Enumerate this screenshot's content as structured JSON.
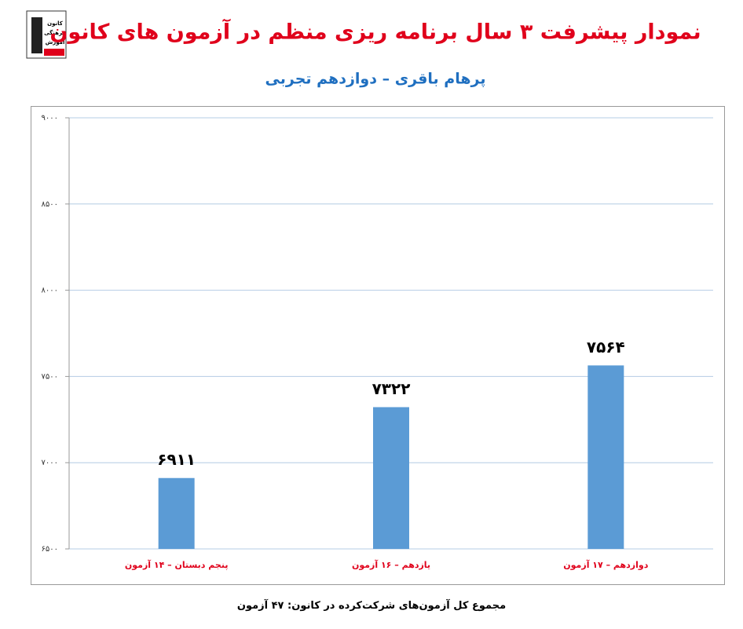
{
  "logo": [
    "کانون",
    "فرهنگی",
    "آموزش"
  ],
  "chart_data": {
    "type": "bar",
    "title": "نمودار پیشرفت ۳ سال برنامه ریزی منظم در آزمون های کانون",
    "subtitle": "پرهام باقری – دوازدهم تجربی",
    "categories": [
      "پنجم دبستان – ۱۴ آزمون",
      "یازدهم – ۱۶ آزمون",
      "دوازدهم – ۱۷ آزمون"
    ],
    "values": [
      6911,
      7322,
      7564
    ],
    "value_labels": [
      "۶۹۱۱",
      "۷۳۲۲",
      "۷۵۶۴"
    ],
    "color": "#5b9bd5",
    "ylim": [
      6500,
      9000
    ],
    "yticks": [
      {
        "value": 6500,
        "label": "۶۵۰۰"
      },
      {
        "value": 7000,
        "label": "۷۰۰۰"
      },
      {
        "value": 7500,
        "label": "۷۵۰۰"
      },
      {
        "value": 8000,
        "label": "۸۰۰۰"
      },
      {
        "value": 8500,
        "label": "۸۵۰۰"
      },
      {
        "value": 9000,
        "label": "۹۰۰۰"
      }
    ],
    "grid": true,
    "footer": "مجموع کل آزمون‌های شرکت‌کرده در کانون: ۴۷ آزمون"
  }
}
